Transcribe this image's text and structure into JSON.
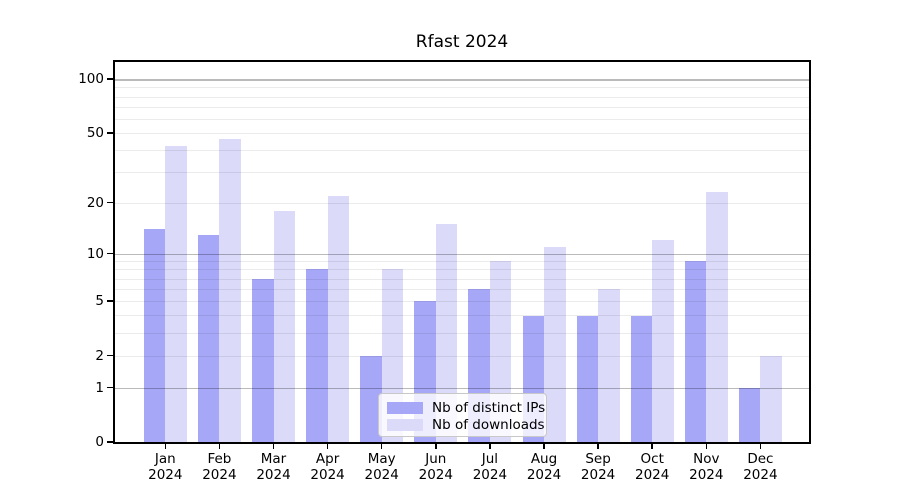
{
  "chart_data": {
    "type": "bar",
    "title": "Rfast 2024",
    "categories": [
      "Jan",
      "Feb",
      "Mar",
      "Apr",
      "May",
      "Jun",
      "Jul",
      "Aug",
      "Sep",
      "Oct",
      "Nov",
      "Dec"
    ],
    "x_year_suffix": "2024",
    "series": [
      {
        "name": "Nb of distinct IPs",
        "color": "#a7a7f8",
        "values": [
          14,
          13,
          7,
          8,
          2,
          5,
          6,
          4,
          4,
          4,
          9,
          1
        ]
      },
      {
        "name": "Nb of downloads",
        "color": "#dbdbf9",
        "values": [
          42,
          46,
          18,
          22,
          8,
          15,
          9,
          11,
          6,
          12,
          23,
          2
        ]
      }
    ],
    "yscale": "log10(1+x)",
    "ylim": [
      0,
      127
    ],
    "yticks": [
      0,
      1,
      2,
      5,
      10,
      20,
      50,
      100
    ],
    "major_gridlines": [
      1,
      10,
      100
    ],
    "minor_gridlines": [
      2,
      3,
      4,
      5,
      6,
      7,
      8,
      9,
      20,
      30,
      40,
      50,
      60,
      70,
      80,
      90
    ],
    "grid": "on",
    "legend_position": "lower center",
    "xlabel": "",
    "ylabel": ""
  },
  "colors": {
    "background": "#ffffff",
    "spine": "#000000",
    "major_grid": "rgba(0,0,0,0.27)",
    "minor_grid": "rgba(0,0,0,0.08)",
    "text": "#000000"
  }
}
